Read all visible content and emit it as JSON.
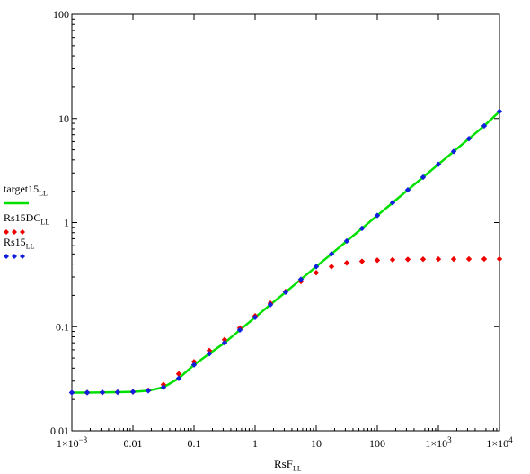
{
  "chart_data": {
    "type": "line",
    "xscale": "log",
    "yscale": "log",
    "xlim": [
      0.001,
      10000
    ],
    "ylim": [
      0.01,
      100
    ],
    "grid": false,
    "legend_position": "left",
    "xlabel": "RsF",
    "xlabel_sub": "LL",
    "x_ticks": [
      {
        "value": 0.001,
        "label": "1×10",
        "sup": "−3"
      },
      {
        "value": 0.01,
        "label": "0.01",
        "sup": ""
      },
      {
        "value": 0.1,
        "label": "0.1",
        "sup": ""
      },
      {
        "value": 1,
        "label": "1",
        "sup": ""
      },
      {
        "value": 10,
        "label": "10",
        "sup": ""
      },
      {
        "value": 100,
        "label": "100",
        "sup": ""
      },
      {
        "value": 1000,
        "label": "1×10",
        "sup": "3"
      },
      {
        "value": 10000,
        "label": "1×10",
        "sup": "4"
      }
    ],
    "y_ticks": [
      {
        "value": 0.01,
        "label": "0.01"
      },
      {
        "value": 0.1,
        "label": "0.1"
      },
      {
        "value": 1,
        "label": "1"
      },
      {
        "value": 10,
        "label": "10"
      },
      {
        "value": 100,
        "label": "100"
      }
    ],
    "series": [
      {
        "name": "target15",
        "name_sub": "LL",
        "style": "line",
        "color": "#00e000",
        "x": [
          0.001,
          0.00178,
          0.00316,
          0.00562,
          0.01,
          0.0178,
          0.0316,
          0.0562,
          0.1,
          0.178,
          0.316,
          0.562,
          1,
          1.78,
          3.16,
          5.62,
          10,
          17.8,
          31.6,
          56.2,
          100,
          178,
          316,
          562,
          1000,
          1780,
          3160,
          5620,
          10000
        ],
        "y": [
          0.0233,
          0.0233,
          0.0234,
          0.0235,
          0.0237,
          0.0243,
          0.0262,
          0.0319,
          0.043,
          0.055,
          0.07,
          0.093,
          0.123,
          0.163,
          0.215,
          0.285,
          0.378,
          0.5,
          0.665,
          0.88,
          1.17,
          1.55,
          2.06,
          2.73,
          3.63,
          4.82,
          6.4,
          8.5,
          11.7
        ]
      },
      {
        "name": "Rs15DC",
        "name_sub": "LL",
        "style": "markers",
        "color": "#ee0000",
        "x": [
          0.001,
          0.00178,
          0.00316,
          0.00562,
          0.01,
          0.0178,
          0.0316,
          0.0562,
          0.1,
          0.178,
          0.316,
          0.562,
          1,
          1.78,
          3.16,
          5.62,
          10,
          17.8,
          31.6,
          56.2,
          100,
          178,
          316,
          562,
          1000,
          1780,
          3160,
          5620,
          10000
        ],
        "y": [
          0.0233,
          0.0233,
          0.0234,
          0.0235,
          0.0237,
          0.0245,
          0.0278,
          0.0352,
          0.046,
          0.059,
          0.075,
          0.097,
          0.127,
          0.168,
          0.218,
          0.272,
          0.33,
          0.378,
          0.41,
          0.425,
          0.435,
          0.44,
          0.443,
          0.445,
          0.446,
          0.446,
          0.447,
          0.447,
          0.447
        ]
      },
      {
        "name": "Rs15",
        "name_sub": "LL",
        "style": "markers",
        "color": "#1020dd",
        "x": [
          0.001,
          0.00178,
          0.00316,
          0.00562,
          0.01,
          0.0178,
          0.0316,
          0.0562,
          0.1,
          0.178,
          0.316,
          0.562,
          1,
          1.78,
          3.16,
          5.62,
          10,
          17.8,
          31.6,
          56.2,
          100,
          178,
          316,
          562,
          1000,
          1780,
          3160,
          5620,
          10000
        ],
        "y": [
          0.0233,
          0.0233,
          0.0234,
          0.0235,
          0.0237,
          0.0243,
          0.0262,
          0.0319,
          0.043,
          0.055,
          0.07,
          0.093,
          0.123,
          0.163,
          0.215,
          0.285,
          0.378,
          0.5,
          0.665,
          0.88,
          1.17,
          1.55,
          2.06,
          2.73,
          3.63,
          4.82,
          6.4,
          8.5,
          11.7
        ]
      }
    ]
  }
}
